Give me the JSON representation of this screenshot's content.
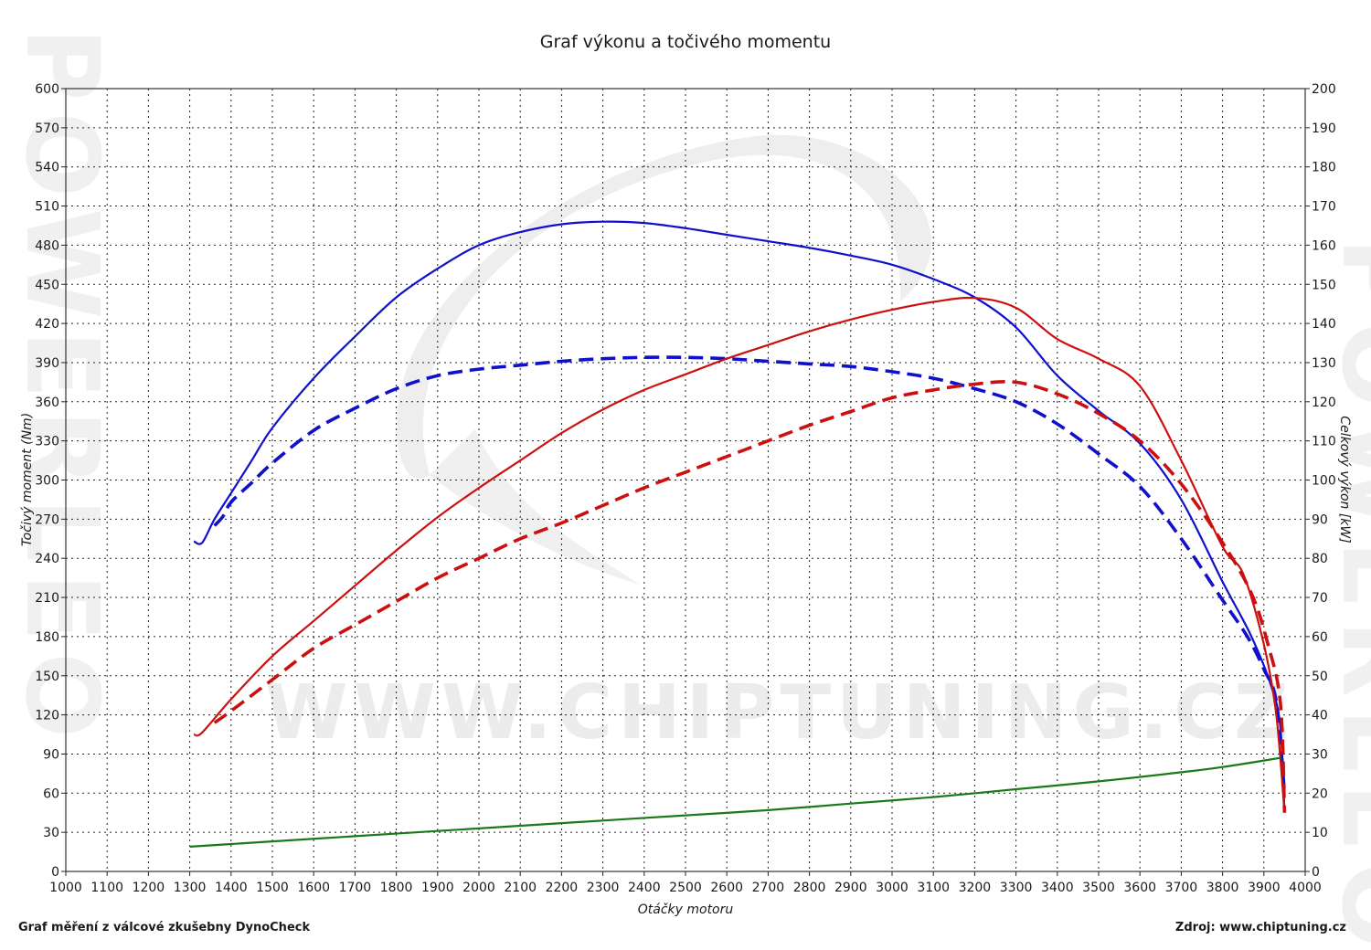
{
  "chart_data": {
    "type": "line",
    "title": "Graf výkonu a točivého momentu",
    "xlabel": "Otáčky motoru",
    "ylabel_left": "Točivý moment (Nm)",
    "ylabel_right": "Celkový výkon [kW]",
    "xlim": [
      1000,
      4000
    ],
    "ylim_left": [
      0,
      600
    ],
    "ylim_right": [
      0,
      200
    ],
    "x_ticks": [
      1000,
      1100,
      1200,
      1300,
      1400,
      1500,
      1600,
      1700,
      1800,
      1900,
      2000,
      2100,
      2200,
      2300,
      2400,
      2500,
      2600,
      2700,
      2800,
      2900,
      3000,
      3100,
      3200,
      3300,
      3400,
      3500,
      3600,
      3700,
      3800,
      3900,
      4000
    ],
    "y_ticks_left": [
      0,
      30,
      60,
      90,
      120,
      150,
      180,
      210,
      240,
      270,
      300,
      330,
      360,
      390,
      420,
      450,
      480,
      510,
      540,
      570,
      600
    ],
    "y_ticks_right": [
      0,
      10,
      20,
      30,
      40,
      50,
      60,
      70,
      80,
      90,
      100,
      110,
      120,
      130,
      140,
      150,
      160,
      170,
      180,
      190,
      200
    ],
    "grid": true,
    "series": [
      {
        "axis": "left",
        "color": "#1010cc",
        "style": "solid",
        "points": [
          [
            1310,
            253
          ],
          [
            1330,
            252
          ],
          [
            1360,
            270
          ],
          [
            1400,
            290
          ],
          [
            1450,
            315
          ],
          [
            1500,
            340
          ],
          [
            1600,
            378
          ],
          [
            1700,
            410
          ],
          [
            1800,
            440
          ],
          [
            1900,
            462
          ],
          [
            2000,
            480
          ],
          [
            2100,
            490
          ],
          [
            2200,
            496
          ],
          [
            2300,
            498
          ],
          [
            2400,
            497
          ],
          [
            2500,
            493
          ],
          [
            2600,
            488
          ],
          [
            2700,
            483
          ],
          [
            2800,
            478
          ],
          [
            2900,
            472
          ],
          [
            3000,
            465
          ],
          [
            3100,
            454
          ],
          [
            3200,
            440
          ],
          [
            3300,
            417
          ],
          [
            3400,
            380
          ],
          [
            3500,
            353
          ],
          [
            3600,
            328
          ],
          [
            3700,
            285
          ],
          [
            3800,
            222
          ],
          [
            3870,
            180
          ],
          [
            3920,
            140
          ],
          [
            3940,
            110
          ],
          [
            3950,
            45
          ]
        ]
      },
      {
        "axis": "left",
        "color": "#1010cc",
        "style": "dashed",
        "points": [
          [
            1360,
            265
          ],
          [
            1380,
            272
          ],
          [
            1400,
            283
          ],
          [
            1450,
            298
          ],
          [
            1500,
            313
          ],
          [
            1600,
            338
          ],
          [
            1700,
            355
          ],
          [
            1800,
            370
          ],
          [
            1900,
            380
          ],
          [
            2000,
            385
          ],
          [
            2100,
            388
          ],
          [
            2200,
            391
          ],
          [
            2300,
            393
          ],
          [
            2400,
            394
          ],
          [
            2500,
            394
          ],
          [
            2600,
            393
          ],
          [
            2700,
            391
          ],
          [
            2800,
            389
          ],
          [
            2900,
            387
          ],
          [
            3000,
            383
          ],
          [
            3100,
            378
          ],
          [
            3200,
            370
          ],
          [
            3300,
            360
          ],
          [
            3400,
            343
          ],
          [
            3500,
            320
          ],
          [
            3600,
            295
          ],
          [
            3700,
            255
          ],
          [
            3800,
            208
          ],
          [
            3860,
            180
          ],
          [
            3900,
            155
          ],
          [
            3930,
            130
          ],
          [
            3950,
            60
          ]
        ]
      },
      {
        "axis": "right",
        "color": "#cc1010",
        "style": "solid",
        "points": [
          [
            1310,
            35
          ],
          [
            1330,
            35.5
          ],
          [
            1400,
            44
          ],
          [
            1500,
            55
          ],
          [
            1600,
            64
          ],
          [
            1700,
            73
          ],
          [
            1800,
            82
          ],
          [
            1900,
            90.5
          ],
          [
            2000,
            98
          ],
          [
            2100,
            105
          ],
          [
            2200,
            112
          ],
          [
            2300,
            118
          ],
          [
            2400,
            123
          ],
          [
            2500,
            127
          ],
          [
            2600,
            131
          ],
          [
            2700,
            134.5
          ],
          [
            2800,
            138
          ],
          [
            2900,
            141
          ],
          [
            3000,
            143.5
          ],
          [
            3100,
            145.5
          ],
          [
            3200,
            146.5
          ],
          [
            3300,
            144
          ],
          [
            3400,
            136
          ],
          [
            3500,
            131
          ],
          [
            3600,
            124
          ],
          [
            3700,
            105
          ],
          [
            3800,
            83
          ],
          [
            3850,
            76
          ],
          [
            3900,
            58
          ],
          [
            3930,
            40
          ],
          [
            3950,
            15
          ]
        ]
      },
      {
        "axis": "right",
        "color": "#cc1010",
        "style": "dashed",
        "points": [
          [
            1360,
            38
          ],
          [
            1400,
            41
          ],
          [
            1500,
            49
          ],
          [
            1600,
            57
          ],
          [
            1700,
            63
          ],
          [
            1800,
            69
          ],
          [
            1900,
            75
          ],
          [
            2000,
            80
          ],
          [
            2100,
            85
          ],
          [
            2200,
            89
          ],
          [
            2300,
            93.5
          ],
          [
            2400,
            98
          ],
          [
            2500,
            102
          ],
          [
            2600,
            106
          ],
          [
            2700,
            110
          ],
          [
            2800,
            114
          ],
          [
            2900,
            117.5
          ],
          [
            3000,
            121
          ],
          [
            3100,
            123
          ],
          [
            3200,
            124.5
          ],
          [
            3300,
            125
          ],
          [
            3400,
            122
          ],
          [
            3500,
            117
          ],
          [
            3600,
            110
          ],
          [
            3700,
            99
          ],
          [
            3800,
            84
          ],
          [
            3870,
            71
          ],
          [
            3910,
            58
          ],
          [
            3940,
            43
          ],
          [
            3950,
            15
          ]
        ]
      },
      {
        "axis": "left",
        "color": "#1a7a1a",
        "style": "solid",
        "points": [
          [
            1300,
            19
          ],
          [
            1500,
            23
          ],
          [
            1700,
            27
          ],
          [
            1900,
            31
          ],
          [
            2100,
            35
          ],
          [
            2300,
            39
          ],
          [
            2500,
            43
          ],
          [
            2700,
            47
          ],
          [
            2900,
            52
          ],
          [
            3100,
            57
          ],
          [
            3300,
            63
          ],
          [
            3500,
            69
          ],
          [
            3700,
            76
          ],
          [
            3800,
            80
          ],
          [
            3940,
            87
          ]
        ]
      }
    ]
  },
  "footer": {
    "left": "Graf měření z válcové zkušebny DynoCheck",
    "right": "Zdroj: www.chiptuning.cz"
  },
  "watermark": {
    "center": "WWW.CHIPTUNING.CZ",
    "side": "POWERLEO"
  }
}
